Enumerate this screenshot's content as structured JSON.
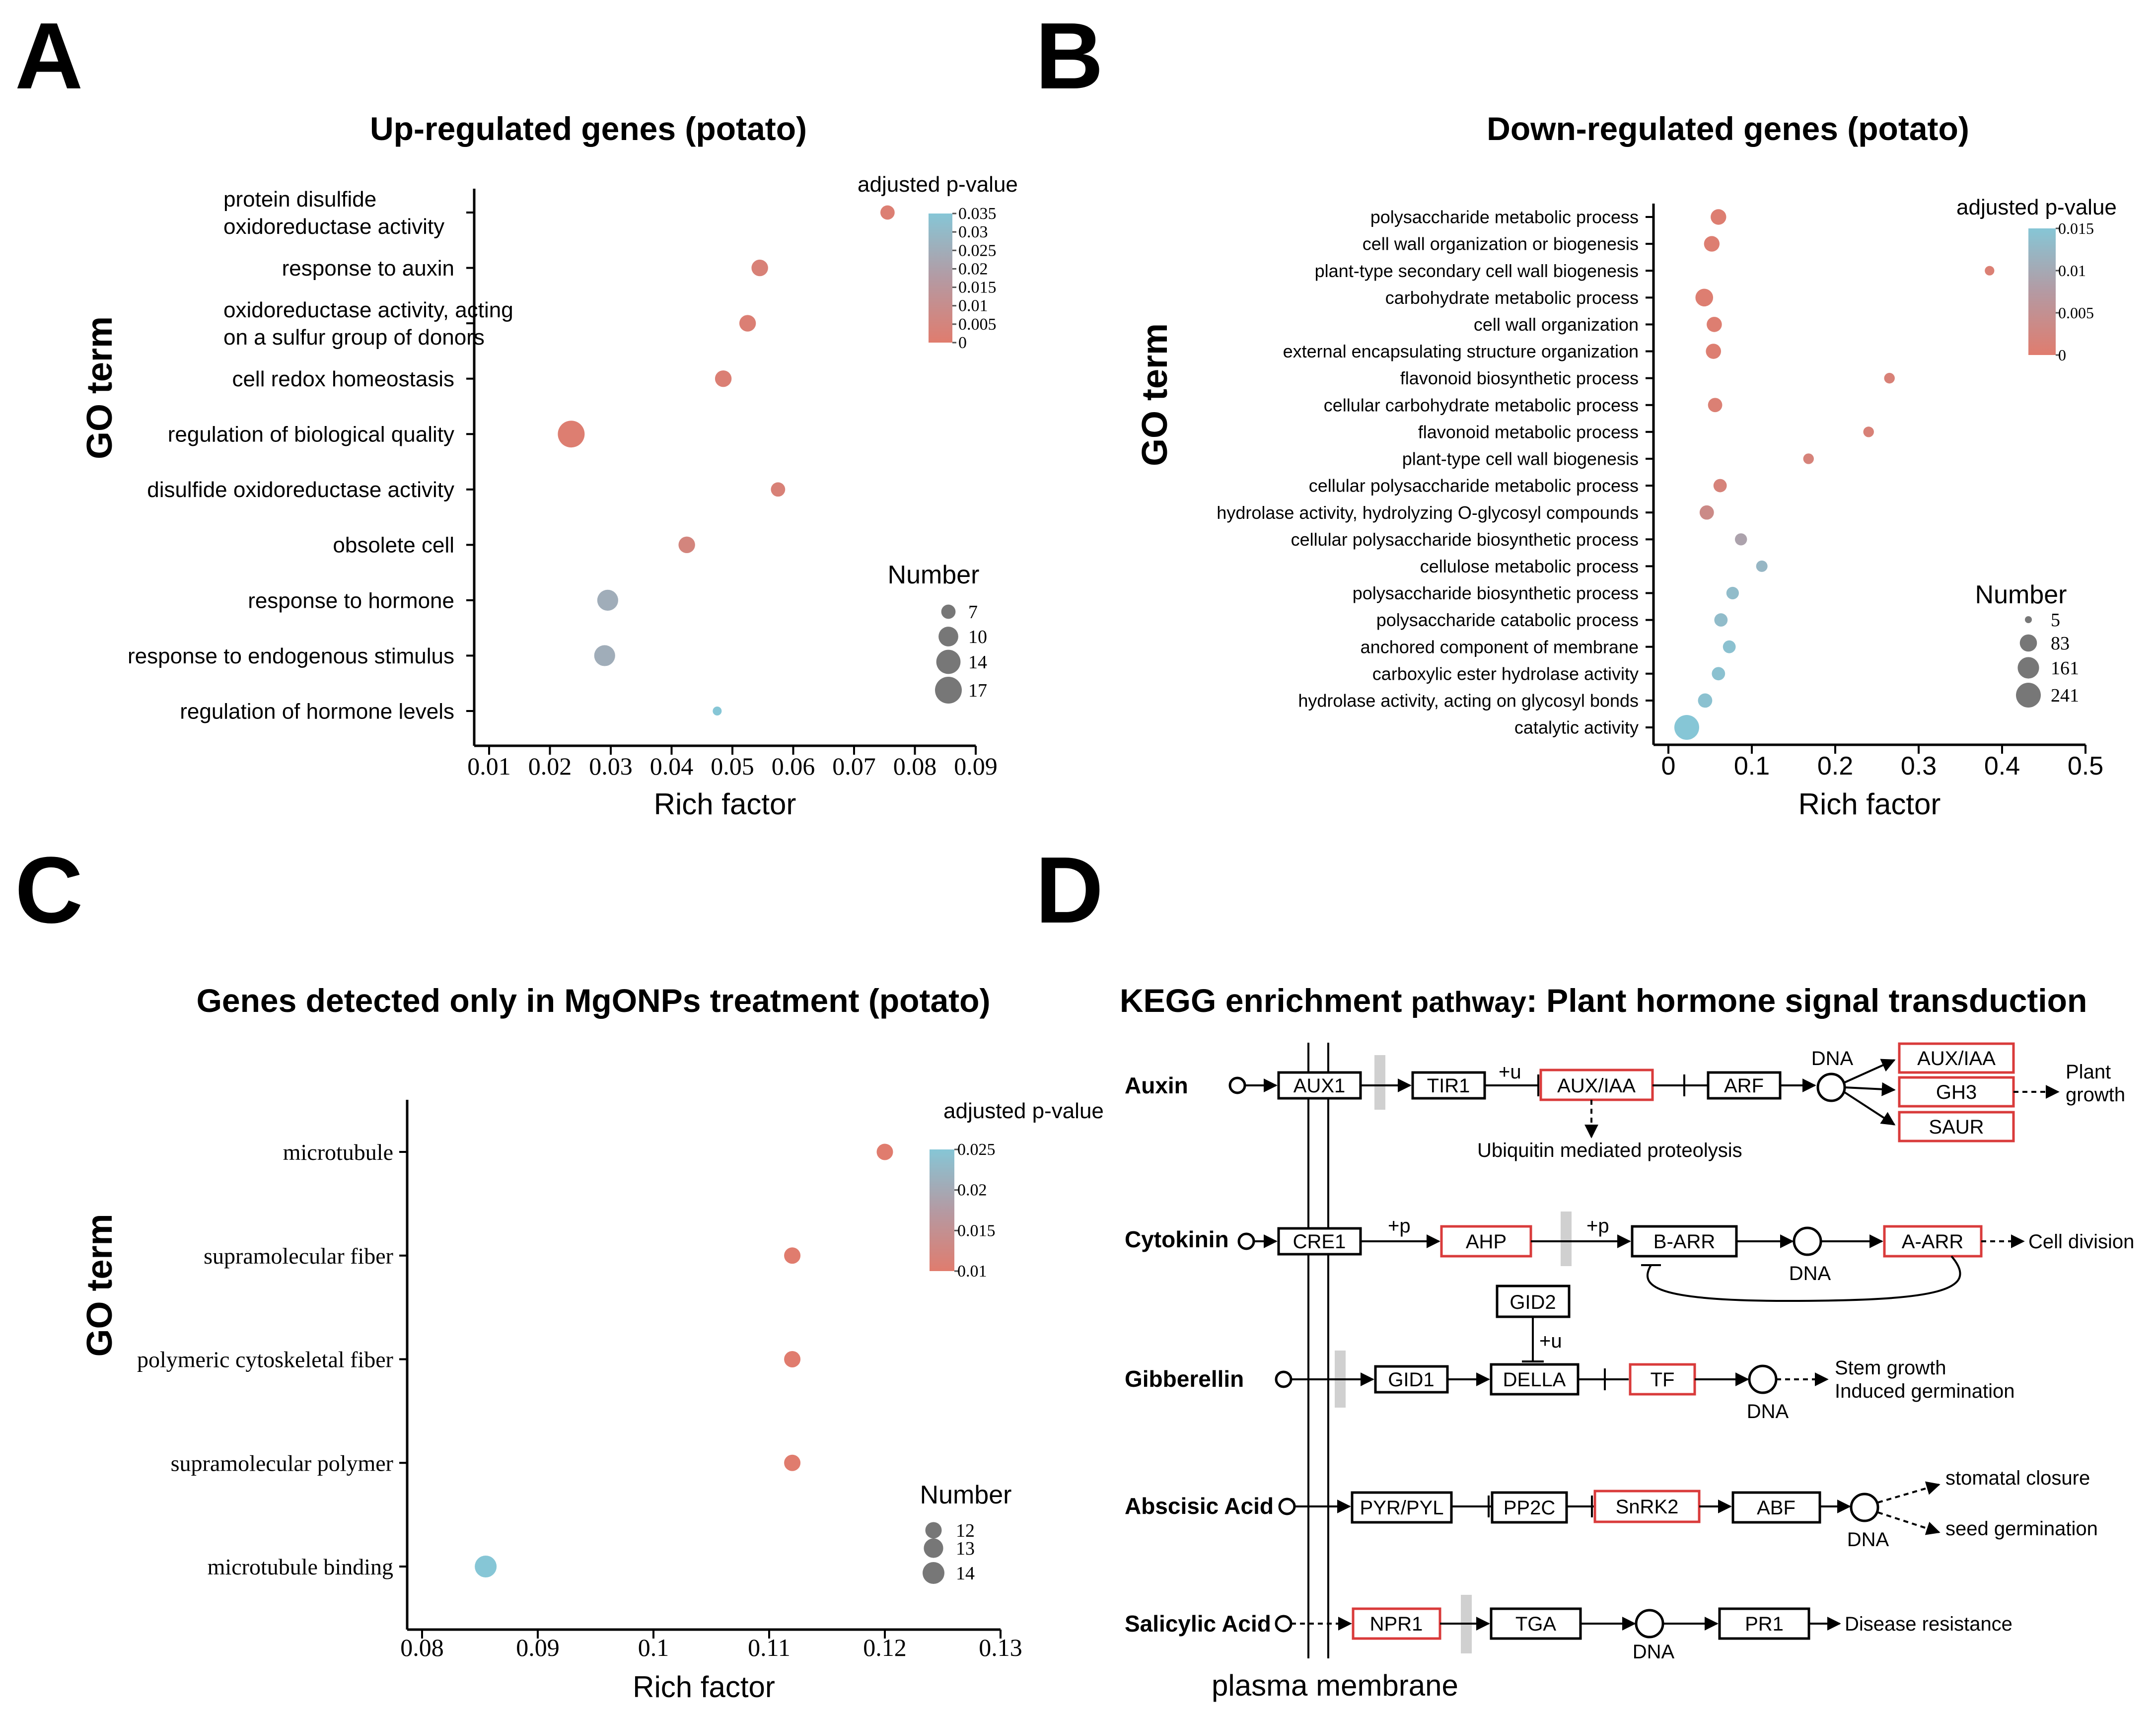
{
  "panels": {
    "A": "A",
    "B": "B",
    "C": "C",
    "D": "D"
  },
  "chart_data": [
    {
      "type": "scatter",
      "panel": "A",
      "title": "Up-regulated genes (potato)",
      "xlabel": "Rich factor",
      "ylabel": "GO term",
      "xlim": [
        0.01,
        0.09
      ],
      "xticks": [
        "0.01",
        "0.02",
        "0.03",
        "0.04",
        "0.05",
        "0.06",
        "0.07",
        "0.08",
        "0.09"
      ],
      "terms": [
        {
          "label": [
            "protein disulfide",
            "oxidoreductase activity"
          ],
          "x": 0.0755,
          "padj": 0.0015,
          "number": 7
        },
        {
          "label": [
            "response to auxin"
          ],
          "x": 0.0545,
          "padj": 0.003,
          "number": 8
        },
        {
          "label": [
            "oxidoreductase activity, acting",
            "on a sulfur group of donors"
          ],
          "x": 0.0525,
          "padj": 0.002,
          "number": 8
        },
        {
          "label": [
            "cell redox homeostasis"
          ],
          "x": 0.0485,
          "padj": 0.002,
          "number": 8
        },
        {
          "label": [
            "regulation of biological quality"
          ],
          "x": 0.0235,
          "padj": 0.001,
          "number": 17
        },
        {
          "label": [
            "disulfide oxidoreductase activity"
          ],
          "x": 0.0575,
          "padj": 0.003,
          "number": 7
        },
        {
          "label": [
            "obsolete cell"
          ],
          "x": 0.0425,
          "padj": 0.005,
          "number": 8
        },
        {
          "label": [
            "response to hormone"
          ],
          "x": 0.0295,
          "padj": 0.025,
          "number": 11
        },
        {
          "label": [
            "response to endogenous stimulus"
          ],
          "x": 0.029,
          "padj": 0.025,
          "number": 11
        },
        {
          "label": [
            "regulation of hormone levels"
          ],
          "x": 0.0475,
          "padj": 0.035,
          "number": 6
        }
      ],
      "legend_p": {
        "title": "adjusted p-value",
        "ticks": [
          "0.035",
          "0.03",
          "0.025",
          "0.02",
          "0.015",
          "0.01",
          "0.005",
          "0"
        ],
        "max": 0.035
      },
      "legend_n": {
        "title": "Number",
        "values": [
          7,
          10,
          14,
          17
        ]
      }
    },
    {
      "type": "scatter",
      "panel": "B",
      "title": "Down-regulated genes (potato)",
      "xlabel": "Rich factor",
      "ylabel": "GO term",
      "xlim": [
        0,
        0.5
      ],
      "xticks": [
        "0",
        "0.1",
        "0.2",
        "0.3",
        "0.4",
        "0.5"
      ],
      "terms": [
        {
          "label": [
            "polysaccharide metabolic process"
          ],
          "x": 0.06,
          "padj": 0.0005,
          "number": 60
        },
        {
          "label": [
            "cell wall organization or biogenesis"
          ],
          "x": 0.052,
          "padj": 0.0005,
          "number": 60
        },
        {
          "label": [
            "plant-type secondary cell wall biogenesis"
          ],
          "x": 0.385,
          "padj": 0.001,
          "number": 10
        },
        {
          "label": [
            "carbohydrate metabolic process"
          ],
          "x": 0.043,
          "padj": 0.0005,
          "number": 90
        },
        {
          "label": [
            "cell wall organization"
          ],
          "x": 0.055,
          "padj": 0.0005,
          "number": 55
        },
        {
          "label": [
            "external encapsulating structure organization"
          ],
          "x": 0.054,
          "padj": 0.0005,
          "number": 55
        },
        {
          "label": [
            "flavonoid biosynthetic process"
          ],
          "x": 0.265,
          "padj": 0.0015,
          "number": 15
        },
        {
          "label": [
            "cellular carbohydrate metabolic process"
          ],
          "x": 0.056,
          "padj": 0.001,
          "number": 45
        },
        {
          "label": [
            "flavonoid metabolic process"
          ],
          "x": 0.24,
          "padj": 0.0015,
          "number": 15
        },
        {
          "label": [
            "plant-type cell wall biogenesis"
          ],
          "x": 0.168,
          "padj": 0.002,
          "number": 15
        },
        {
          "label": [
            "cellular polysaccharide metabolic process"
          ],
          "x": 0.062,
          "padj": 0.002,
          "number": 35
        },
        {
          "label": [
            "hydrolase activity, hydrolyzing O-glycosyl compounds"
          ],
          "x": 0.046,
          "padj": 0.004,
          "number": 45
        },
        {
          "label": [
            "cellular polysaccharide biosynthetic process"
          ],
          "x": 0.087,
          "padj": 0.01,
          "number": 25
        },
        {
          "label": [
            "cellulose metabolic process"
          ],
          "x": 0.112,
          "padj": 0.014,
          "number": 20
        },
        {
          "label": [
            "polysaccharide biosynthetic process"
          ],
          "x": 0.077,
          "padj": 0.015,
          "number": 28
        },
        {
          "label": [
            "polysaccharide catabolic process"
          ],
          "x": 0.063,
          "padj": 0.015,
          "number": 35
        },
        {
          "label": [
            "anchored component of membrane"
          ],
          "x": 0.073,
          "padj": 0.016,
          "number": 30
        },
        {
          "label": [
            "carboxylic ester hydrolase activity"
          ],
          "x": 0.06,
          "padj": 0.016,
          "number": 35
        },
        {
          "label": [
            "hydrolase activity, acting on glycosyl bonds"
          ],
          "x": 0.044,
          "padj": 0.016,
          "number": 45
        },
        {
          "label": [
            "catalytic activity"
          ],
          "x": 0.022,
          "padj": 0.017,
          "number": 241
        }
      ],
      "legend_p": {
        "title": "adjusted p-value",
        "ticks": [
          "0.015",
          "0.01",
          "0.005",
          "0"
        ],
        "max": 0.017
      },
      "legend_n": {
        "title": "Number",
        "values": [
          5,
          83,
          161,
          241
        ]
      }
    },
    {
      "type": "scatter",
      "panel": "C",
      "title": "Genes detected only in MgONPs treatment (potato)",
      "xlabel": "Rich factor",
      "ylabel": "GO term",
      "xlim": [
        0.08,
        0.13
      ],
      "xticks": [
        "0.08",
        "0.09",
        "0.1",
        "0.11",
        "0.12",
        "0.13"
      ],
      "terms": [
        {
          "label": [
            "microtubule"
          ],
          "x": 0.12,
          "padj": 0.008,
          "number": 12
        },
        {
          "label": [
            "supramolecular fiber"
          ],
          "x": 0.112,
          "padj": 0.008,
          "number": 12
        },
        {
          "label": [
            "polymeric cytoskeletal fiber"
          ],
          "x": 0.112,
          "padj": 0.008,
          "number": 12
        },
        {
          "label": [
            "supramolecular polymer"
          ],
          "x": 0.112,
          "padj": 0.008,
          "number": 12
        },
        {
          "label": [
            "microtubule binding"
          ],
          "x": 0.0855,
          "padj": 0.026,
          "number": 14
        }
      ],
      "legend_p": {
        "title": "adjusted p-value",
        "ticks": [
          "0.025",
          "0.02",
          "0.015",
          "0.01"
        ],
        "max": 0.026,
        "min": 0.008
      },
      "legend_n": {
        "title": "Number",
        "values": [
          12,
          13,
          14
        ]
      }
    }
  ],
  "kegg": {
    "title_a": "KEGG enrichment",
    "title_b": "pathway",
    "title_c": ": Plant hormone signal transduction",
    "membrane_label": "plasma membrane",
    "highlight_color": "#d93b3b",
    "rows": {
      "auxin": {
        "label": "Auxin",
        "receptor": "AUX1",
        "nodes": [
          "TIR1",
          "AUX/IAA",
          "ARF"
        ],
        "plus": "+u",
        "note": "Ubiquitin mediated proteolysis",
        "dna": "DNA",
        "targets": [
          "AUX/IAA",
          "GH3",
          "SAUR"
        ],
        "outcome": [
          "Plant",
          "growth"
        ]
      },
      "cytokinin": {
        "label": "Cytokinin",
        "receptor": "CRE1",
        "nodes": [
          "AHP",
          "B-ARR",
          "A-ARR"
        ],
        "plus1": "+p",
        "plus2": "+p",
        "dna": "DNA",
        "outcome": "Cell division"
      },
      "gibberellin": {
        "label": "Gibberellin",
        "nodes": [
          "GID2",
          "GID1",
          "DELLA",
          "TF"
        ],
        "plus": "+u",
        "dna": "DNA",
        "outcome": [
          "Stem growth",
          "Induced germination"
        ]
      },
      "abscisic": {
        "label": "Abscisic Acid",
        "nodes": [
          "PYR/PYL",
          "PP2C",
          "SnRK2",
          "ABF"
        ],
        "dna": "DNA",
        "outcomes": [
          "stomatal closure",
          "seed germination"
        ]
      },
      "salicylic": {
        "label": "Salicylic Acid",
        "nodes": [
          "NPR1",
          "TGA",
          "PR1"
        ],
        "dna": "DNA",
        "outcome": "Disease resistance"
      }
    }
  }
}
